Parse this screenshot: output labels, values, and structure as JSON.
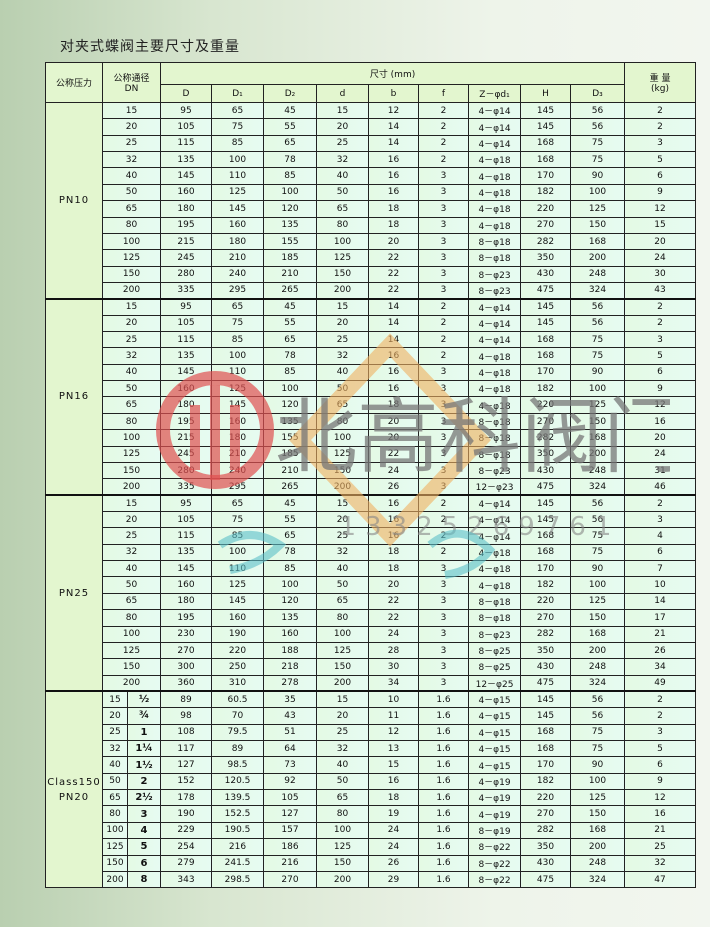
{
  "title": "对夹式蝶阀主要尺寸及重量",
  "header": {
    "pressure": "公称压力",
    "dn": "公称通径",
    "dn_sub": "DN",
    "dims": "尺寸 (mm)",
    "weight": "重 量",
    "weight_unit": "(kg)",
    "cols": [
      "D",
      "D₁",
      "D₂",
      "d",
      "b",
      "f",
      "Z－φd₁",
      "H",
      "D₃"
    ]
  },
  "groups": [
    {
      "label": "PN10",
      "rows": [
        [
          "15",
          "95",
          "65",
          "45",
          "15",
          "12",
          "2",
          "4－φ14",
          "145",
          "56",
          "2"
        ],
        [
          "20",
          "105",
          "75",
          "55",
          "20",
          "14",
          "2",
          "4－φ14",
          "145",
          "56",
          "2"
        ],
        [
          "25",
          "115",
          "85",
          "65",
          "25",
          "14",
          "2",
          "4－φ14",
          "168",
          "75",
          "3"
        ],
        [
          "32",
          "135",
          "100",
          "78",
          "32",
          "16",
          "2",
          "4－φ18",
          "168",
          "75",
          "5"
        ],
        [
          "40",
          "145",
          "110",
          "85",
          "40",
          "16",
          "3",
          "4－φ18",
          "170",
          "90",
          "6"
        ],
        [
          "50",
          "160",
          "125",
          "100",
          "50",
          "16",
          "3",
          "4－φ18",
          "182",
          "100",
          "9"
        ],
        [
          "65",
          "180",
          "145",
          "120",
          "65",
          "18",
          "3",
          "4－φ18",
          "220",
          "125",
          "12"
        ],
        [
          "80",
          "195",
          "160",
          "135",
          "80",
          "18",
          "3",
          "4－φ18",
          "270",
          "150",
          "15"
        ],
        [
          "100",
          "215",
          "180",
          "155",
          "100",
          "20",
          "3",
          "8－φ18",
          "282",
          "168",
          "20"
        ],
        [
          "125",
          "245",
          "210",
          "185",
          "125",
          "22",
          "3",
          "8－φ18",
          "350",
          "200",
          "24"
        ],
        [
          "150",
          "280",
          "240",
          "210",
          "150",
          "22",
          "3",
          "8－φ23",
          "430",
          "248",
          "30"
        ],
        [
          "200",
          "335",
          "295",
          "265",
          "200",
          "22",
          "3",
          "8－φ23",
          "475",
          "324",
          "43"
        ]
      ]
    },
    {
      "label": "PN16",
      "rows": [
        [
          "15",
          "95",
          "65",
          "45",
          "15",
          "14",
          "2",
          "4－φ14",
          "145",
          "56",
          "2"
        ],
        [
          "20",
          "105",
          "75",
          "55",
          "20",
          "14",
          "2",
          "4－φ14",
          "145",
          "56",
          "2"
        ],
        [
          "25",
          "115",
          "85",
          "65",
          "25",
          "14",
          "2",
          "4－φ14",
          "168",
          "75",
          "3"
        ],
        [
          "32",
          "135",
          "100",
          "78",
          "32",
          "16",
          "2",
          "4－φ18",
          "168",
          "75",
          "5"
        ],
        [
          "40",
          "145",
          "110",
          "85",
          "40",
          "16",
          "3",
          "4－φ18",
          "170",
          "90",
          "6"
        ],
        [
          "50",
          "160",
          "125",
          "100",
          "50",
          "16",
          "3",
          "4－φ18",
          "182",
          "100",
          "9"
        ],
        [
          "65",
          "180",
          "145",
          "120",
          "65",
          "18",
          "3",
          "4－φ18",
          "220",
          "125",
          "12"
        ],
        [
          "80",
          "195",
          "160",
          "135",
          "80",
          "20",
          "3",
          "8－φ18",
          "270",
          "150",
          "16"
        ],
        [
          "100",
          "215",
          "180",
          "155",
          "100",
          "20",
          "3",
          "8－φ18",
          "282",
          "168",
          "20"
        ],
        [
          "125",
          "245",
          "210",
          "185",
          "125",
          "22",
          "3",
          "8－φ18",
          "350",
          "200",
          "24"
        ],
        [
          "150",
          "280",
          "240",
          "210",
          "150",
          "24",
          "3",
          "8－φ23",
          "430",
          "248",
          "31"
        ],
        [
          "200",
          "335",
          "295",
          "265",
          "200",
          "26",
          "3",
          "12－φ23",
          "475",
          "324",
          "46"
        ]
      ]
    },
    {
      "label": "PN25",
      "rows": [
        [
          "15",
          "95",
          "65",
          "45",
          "15",
          "16",
          "2",
          "4－φ14",
          "145",
          "56",
          "2"
        ],
        [
          "20",
          "105",
          "75",
          "55",
          "20",
          "16",
          "2",
          "4－φ14",
          "145",
          "56",
          "3"
        ],
        [
          "25",
          "115",
          "85",
          "65",
          "25",
          "16",
          "2",
          "4－φ14",
          "168",
          "75",
          "4"
        ],
        [
          "32",
          "135",
          "100",
          "78",
          "32",
          "18",
          "2",
          "4－φ18",
          "168",
          "75",
          "6"
        ],
        [
          "40",
          "145",
          "110",
          "85",
          "40",
          "18",
          "3",
          "4－φ18",
          "170",
          "90",
          "7"
        ],
        [
          "50",
          "160",
          "125",
          "100",
          "50",
          "20",
          "3",
          "4－φ18",
          "182",
          "100",
          "10"
        ],
        [
          "65",
          "180",
          "145",
          "120",
          "65",
          "22",
          "3",
          "8－φ18",
          "220",
          "125",
          "14"
        ],
        [
          "80",
          "195",
          "160",
          "135",
          "80",
          "22",
          "3",
          "8－φ18",
          "270",
          "150",
          "17"
        ],
        [
          "100",
          "230",
          "190",
          "160",
          "100",
          "24",
          "3",
          "8－φ23",
          "282",
          "168",
          "21"
        ],
        [
          "125",
          "270",
          "220",
          "188",
          "125",
          "28",
          "3",
          "8－φ25",
          "350",
          "200",
          "26"
        ],
        [
          "150",
          "300",
          "250",
          "218",
          "150",
          "30",
          "3",
          "8－φ25",
          "430",
          "248",
          "34"
        ],
        [
          "200",
          "360",
          "310",
          "278",
          "200",
          "34",
          "3",
          "12－φ25",
          "475",
          "324",
          "49"
        ]
      ]
    },
    {
      "label": "Class150",
      "label2": "PN20",
      "inch": true,
      "rows": [
        [
          "15",
          "½",
          "89",
          "60.5",
          "35",
          "15",
          "10",
          "1.6",
          "4－φ15",
          "145",
          "56",
          "2"
        ],
        [
          "20",
          "¾",
          "98",
          "70",
          "43",
          "20",
          "11",
          "1.6",
          "4－φ15",
          "145",
          "56",
          "2"
        ],
        [
          "25",
          "1",
          "108",
          "79.5",
          "51",
          "25",
          "12",
          "1.6",
          "4－φ15",
          "168",
          "75",
          "3"
        ],
        [
          "32",
          "1¼",
          "117",
          "89",
          "64",
          "32",
          "13",
          "1.6",
          "4－φ15",
          "168",
          "75",
          "5"
        ],
        [
          "40",
          "1½",
          "127",
          "98.5",
          "73",
          "40",
          "15",
          "1.6",
          "4－φ15",
          "170",
          "90",
          "6"
        ],
        [
          "50",
          "2",
          "152",
          "120.5",
          "92",
          "50",
          "16",
          "1.6",
          "4－φ19",
          "182",
          "100",
          "9"
        ],
        [
          "65",
          "2½",
          "178",
          "139.5",
          "105",
          "65",
          "18",
          "1.6",
          "4－φ19",
          "220",
          "125",
          "12"
        ],
        [
          "80",
          "3",
          "190",
          "152.5",
          "127",
          "80",
          "19",
          "1.6",
          "4－φ19",
          "270",
          "150",
          "16"
        ],
        [
          "100",
          "4",
          "229",
          "190.5",
          "157",
          "100",
          "24",
          "1.6",
          "8－φ19",
          "282",
          "168",
          "21"
        ],
        [
          "125",
          "5",
          "254",
          "216",
          "186",
          "125",
          "24",
          "1.6",
          "8－φ22",
          "350",
          "200",
          "25"
        ],
        [
          "150",
          "6",
          "279",
          "241.5",
          "216",
          "150",
          "26",
          "1.6",
          "8－φ22",
          "430",
          "248",
          "32"
        ],
        [
          "200",
          "8",
          "343",
          "298.5",
          "270",
          "200",
          "29",
          "1.6",
          "8－φ22",
          "475",
          "324",
          "47"
        ]
      ]
    }
  ],
  "watermark": {
    "brand": "北高科阀门",
    "phone": "13325269761",
    "logo_color": "#e05050",
    "diamond_color": "#f0b060"
  }
}
